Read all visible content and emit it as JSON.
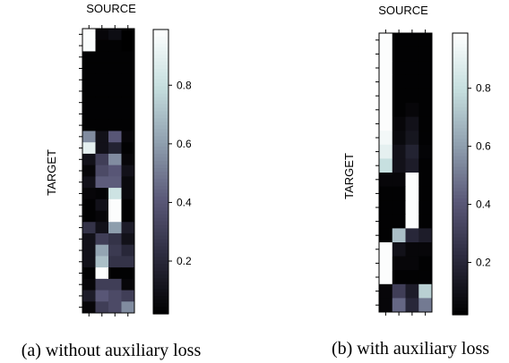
{
  "chart_data": [
    {
      "type": "heatmap",
      "caption": "(a) without auxiliary loss",
      "xlabel": "SOURCE",
      "ylabel": "TARGET",
      "colorbar_ticks": [
        "0.2",
        "0.4",
        "0.6",
        "0.8"
      ],
      "colorbar_range": [
        0.02,
        0.99
      ],
      "colormap": [
        "#000000",
        "#2b2a3d",
        "#5a5878",
        "#8f9fae",
        "#c6dfdf",
        "#ffffff"
      ],
      "values": [
        [
          0.98,
          0.05,
          0.08,
          0.02
        ],
        [
          0.97,
          0.03,
          0.03,
          0.02
        ],
        [
          0.03,
          0.03,
          0.03,
          0.03
        ],
        [
          0.03,
          0.03,
          0.03,
          0.03
        ],
        [
          0.03,
          0.03,
          0.03,
          0.03
        ],
        [
          0.03,
          0.03,
          0.03,
          0.03
        ],
        [
          0.03,
          0.03,
          0.03,
          0.03
        ],
        [
          0.03,
          0.03,
          0.03,
          0.03
        ],
        [
          0.03,
          0.03,
          0.03,
          0.03
        ],
        [
          0.55,
          0.1,
          0.4,
          0.05
        ],
        [
          0.9,
          0.1,
          0.18,
          0.03
        ],
        [
          0.1,
          0.3,
          0.55,
          0.05
        ],
        [
          0.05,
          0.35,
          0.4,
          0.1
        ],
        [
          0.1,
          0.42,
          0.42,
          0.06
        ],
        [
          0.05,
          0.04,
          0.82,
          0.06
        ],
        [
          0.03,
          0.1,
          0.98,
          0.03
        ],
        [
          0.03,
          0.05,
          0.98,
          0.03
        ],
        [
          0.25,
          0.1,
          0.6,
          0.15
        ],
        [
          0.1,
          0.3,
          0.25,
          0.1
        ],
        [
          0.1,
          0.62,
          0.28,
          0.2
        ],
        [
          0.1,
          0.7,
          0.25,
          0.25
        ],
        [
          0.03,
          0.98,
          0.03,
          0.03
        ],
        [
          0.05,
          0.3,
          0.3,
          0.05
        ],
        [
          0.15,
          0.4,
          0.35,
          0.3
        ],
        [
          0.05,
          0.3,
          0.35,
          0.55
        ]
      ]
    },
    {
      "type": "heatmap",
      "caption": "(b) with auxiliary loss",
      "xlabel": "SOURCE",
      "ylabel": "TARGET",
      "colorbar_ticks": [
        "0.2",
        "0.4",
        "0.6",
        "0.8"
      ],
      "colorbar_range": [
        0.02,
        0.99
      ],
      "colormap": [
        "#000000",
        "#2b2a3d",
        "#5a5878",
        "#8f9fae",
        "#c6dfdf",
        "#ffffff"
      ],
      "values": [
        [
          0.98,
          0.03,
          0.03,
          0.03
        ],
        [
          0.98,
          0.03,
          0.03,
          0.03
        ],
        [
          0.98,
          0.03,
          0.03,
          0.03
        ],
        [
          0.98,
          0.03,
          0.03,
          0.03
        ],
        [
          0.98,
          0.03,
          0.03,
          0.03
        ],
        [
          0.98,
          0.03,
          0.05,
          0.03
        ],
        [
          0.98,
          0.05,
          0.1,
          0.03
        ],
        [
          0.95,
          0.06,
          0.12,
          0.03
        ],
        [
          0.9,
          0.1,
          0.18,
          0.04
        ],
        [
          0.8,
          0.1,
          0.15,
          0.03
        ],
        [
          0.05,
          0.05,
          0.98,
          0.03
        ],
        [
          0.03,
          0.03,
          0.98,
          0.03
        ],
        [
          0.03,
          0.03,
          0.98,
          0.03
        ],
        [
          0.03,
          0.03,
          0.98,
          0.03
        ],
        [
          0.03,
          0.7,
          0.2,
          0.15
        ],
        [
          0.98,
          0.1,
          0.05,
          0.05
        ],
        [
          0.98,
          0.05,
          0.05,
          0.03
        ],
        [
          0.98,
          0.03,
          0.03,
          0.03
        ],
        [
          0.05,
          0.3,
          0.15,
          0.75
        ],
        [
          0.05,
          0.45,
          0.2,
          0.5
        ]
      ]
    }
  ]
}
